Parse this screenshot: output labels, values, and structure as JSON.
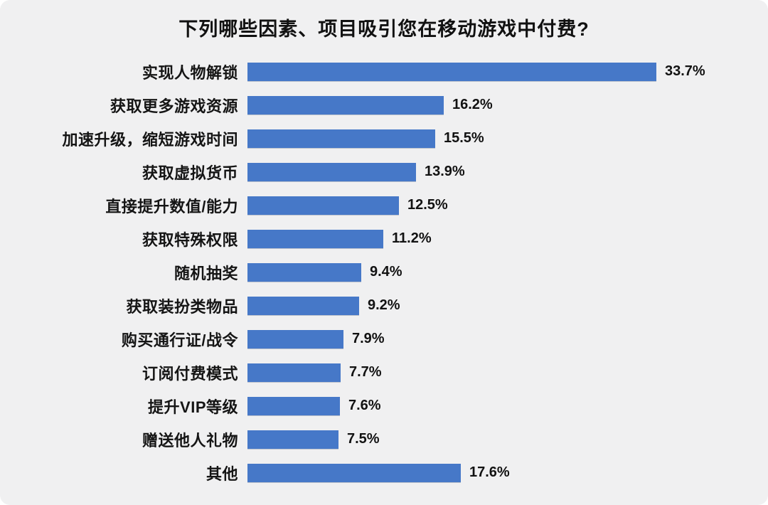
{
  "page": {
    "background": "#ffffff",
    "panel_background": "#f0f0f1"
  },
  "chart_data": {
    "type": "bar",
    "orientation": "horizontal",
    "title": "下列哪些因素、项目吸引您在移动游戏中付费?",
    "categories": [
      "实现人物解锁",
      "获取更多游戏资源",
      "加速升级，缩短游戏时间",
      "获取虚拟货币",
      "直接提升数值/能力",
      "获取特殊权限",
      "随机抽奖",
      "获取装扮类物品",
      "购买通行证/战令",
      "订阅付费模式",
      "提升VIP等级",
      "赠送他人礼物",
      "其他"
    ],
    "values": [
      33.7,
      16.2,
      15.5,
      13.9,
      12.5,
      11.2,
      9.4,
      9.2,
      7.9,
      7.7,
      7.6,
      7.5,
      17.6
    ],
    "value_labels": [
      "33.7%",
      "16.2%",
      "15.5%",
      "13.9%",
      "12.5%",
      "11.2%",
      "9.4%",
      "9.2%",
      "7.9%",
      "7.7%",
      "7.6%",
      "7.5%",
      "17.6%"
    ],
    "xlabel": "",
    "ylabel": "",
    "xlim": [
      0,
      35
    ],
    "grid": false,
    "legend": false,
    "bar_color": "#4678c8",
    "text_color": "#111111",
    "value_label_position": "outside-right"
  }
}
